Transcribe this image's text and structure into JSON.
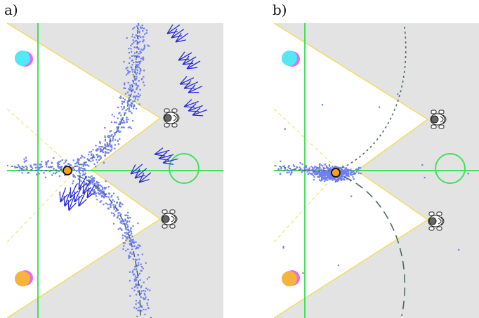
{
  "panels": [
    {
      "label": "a)"
    },
    {
      "label": "b)"
    }
  ],
  "colors": {
    "field_bg": "#e3e3e3",
    "cone": "#ffffff",
    "cone_edge": "#f2dc5a",
    "green_line": "#42e05c",
    "goal_circle": "#42e05c",
    "ball": "#f7a21b",
    "ball_edge": "#111111",
    "samples": "#6f7ff0",
    "trajectory": "#4a6a62",
    "arrows": "#2b2bd6",
    "marker_cyan": "#52e8f6",
    "marker_magenta": "#e46af5",
    "marker_orange": "#f6b43c",
    "robot": "#555555"
  },
  "icons": [
    "robot-icon",
    "ball-icon",
    "goal-circle-icon",
    "velocity-arrow-icon"
  ]
}
